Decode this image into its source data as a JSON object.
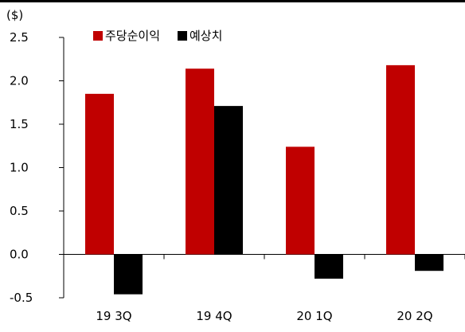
{
  "chart_data": {
    "type": "bar",
    "unit_label": "($)",
    "categories": [
      "19 3Q",
      "19 4Q",
      "20 1Q",
      "20 2Q"
    ],
    "series": [
      {
        "name": "주당순이익",
        "color": "#c00000",
        "values": [
          1.85,
          2.14,
          1.24,
          2.18
        ]
      },
      {
        "name": "예상치",
        "color": "#000000",
        "values": [
          -0.46,
          1.71,
          -0.28,
          -0.19
        ]
      }
    ],
    "ylim": [
      -0.5,
      2.5
    ],
    "yticks": [
      "-0.5",
      "0.0",
      "0.5",
      "1.0",
      "1.5",
      "2.0",
      "2.5"
    ],
    "legend_position": "top-left",
    "grid": false
  }
}
